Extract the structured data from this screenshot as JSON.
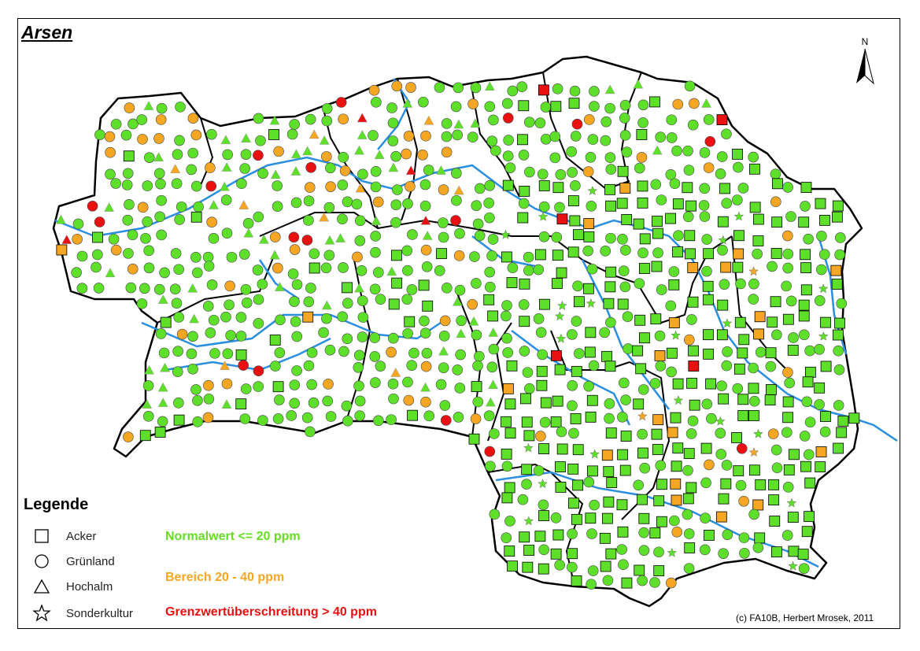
{
  "title": "Arsen",
  "north_label": "N",
  "legend": {
    "heading": "Legende",
    "symbols": [
      {
        "label": "Acker",
        "icon": "square-icon"
      },
      {
        "label": "Grünland",
        "icon": "circle-icon"
      },
      {
        "label": "Hochalm",
        "icon": "triangle-icon"
      },
      {
        "label": "Sonderkultur",
        "icon": "star-icon"
      }
    ],
    "classes": [
      {
        "label": "Normalwert <= 20 ppm",
        "color": "#66dd22"
      },
      {
        "label": "Bereich 20 - 40 ppm",
        "color": "#f5a623"
      },
      {
        "label": "Grenzwertüberschreitung > 40 ppm",
        "color": "#e81010"
      }
    ]
  },
  "credit": "(c) FA10B, Herbert Mrosek, 2011",
  "colors": {
    "normal": "#5ee02a",
    "medium": "#f5a623",
    "high": "#e81010",
    "river": "#2a8fe0",
    "border": "#000000"
  }
}
